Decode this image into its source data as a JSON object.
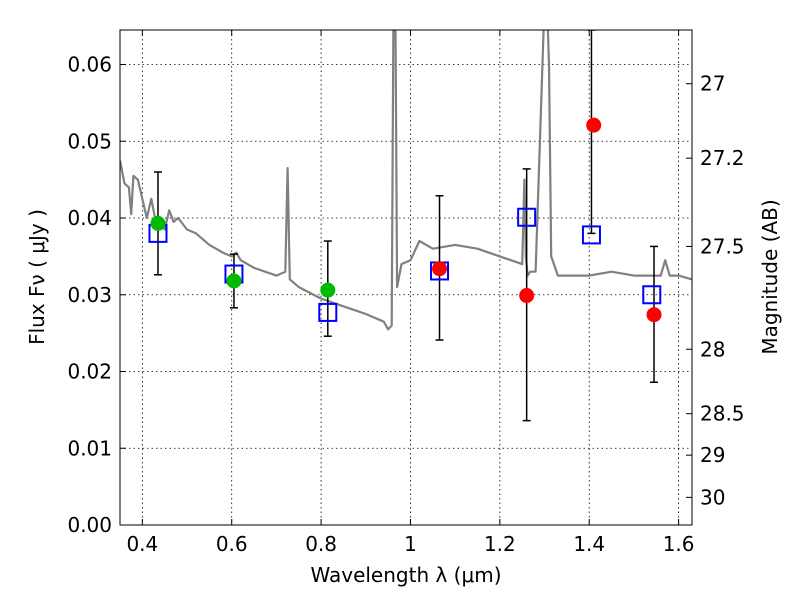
{
  "chart_data": {
    "type": "scatter",
    "xlabel": "Wavelength  λ (μm)",
    "ylabel_left": "Flux  Fν  ( μJy )",
    "ylabel_right": "Magnitude (AB)",
    "xlim": [
      0.35,
      1.63
    ],
    "ylim": [
      0.0,
      0.0645
    ],
    "x_ticks": [
      0.4,
      0.6,
      0.8,
      1.0,
      1.2,
      1.4,
      1.6
    ],
    "x_tick_labels": [
      "0.4",
      "0.6",
      "0.8",
      "1",
      "1.2",
      "1.4",
      "1.6"
    ],
    "y_ticks": [
      0.0,
      0.01,
      0.02,
      0.03,
      0.04,
      0.05,
      0.06
    ],
    "y_tick_labels": [
      "0.00",
      "0.01",
      "0.02",
      "0.03",
      "0.04",
      "0.05",
      "0.06"
    ],
    "right_ticks": [
      {
        "label": "27",
        "flux": 0.0575
      },
      {
        "label": "27.2",
        "flux": 0.0478
      },
      {
        "label": "27.5",
        "flux": 0.0363
      },
      {
        "label": "28",
        "flux": 0.0229
      },
      {
        "label": "28.5",
        "flux": 0.0145
      },
      {
        "label": "29",
        "flux": 0.0091
      },
      {
        "label": "30",
        "flux": 0.0036
      }
    ],
    "grid": true,
    "series": [
      {
        "style": "model-spectrum-line",
        "color": "#808080",
        "x": [
          0.35,
          0.36,
          0.37,
          0.375,
          0.38,
          0.39,
          0.4,
          0.41,
          0.42,
          0.43,
          0.44,
          0.45,
          0.46,
          0.47,
          0.48,
          0.5,
          0.52,
          0.55,
          0.58,
          0.6,
          0.61,
          0.62,
          0.65,
          0.7,
          0.72,
          0.725,
          0.73,
          0.75,
          0.8,
          0.85,
          0.9,
          0.94,
          0.95,
          0.958,
          0.962,
          0.966,
          0.97,
          0.975,
          0.98,
          1.0,
          1.02,
          1.05,
          1.1,
          1.15,
          1.2,
          1.25,
          1.255,
          1.258,
          1.262,
          1.268,
          1.28,
          1.3,
          1.305,
          1.31,
          1.315,
          1.33,
          1.35,
          1.4,
          1.45,
          1.5,
          1.56,
          1.57,
          1.58,
          1.6,
          1.63
        ],
        "y": [
          0.0475,
          0.0445,
          0.044,
          0.0405,
          0.0455,
          0.045,
          0.0425,
          0.04,
          0.0425,
          0.0395,
          0.0395,
          0.0385,
          0.041,
          0.0395,
          0.04,
          0.0385,
          0.038,
          0.0365,
          0.0355,
          0.035,
          0.0355,
          0.0345,
          0.0335,
          0.0325,
          0.033,
          0.0465,
          0.032,
          0.031,
          0.0295,
          0.0285,
          0.0275,
          0.0265,
          0.0255,
          0.026,
          0.068,
          0.069,
          0.031,
          0.0325,
          0.034,
          0.0345,
          0.037,
          0.036,
          0.0365,
          0.036,
          0.035,
          0.034,
          0.045,
          0.035,
          0.0325,
          0.033,
          0.033,
          0.068,
          0.069,
          0.06,
          0.035,
          0.0325,
          0.0325,
          0.0325,
          0.033,
          0.0325,
          0.0325,
          0.0345,
          0.0325,
          0.0325,
          0.032
        ]
      },
      {
        "style": "green-circles",
        "color": "#00bb00",
        "x": [
          0.435,
          0.605,
          0.815
        ],
        "y": [
          0.0393,
          0.0318,
          0.0306
        ]
      },
      {
        "style": "red-circles",
        "color": "#ff0000",
        "x": [
          1.065,
          1.26,
          1.41,
          1.545
        ],
        "y": [
          0.0334,
          0.0299,
          0.0521,
          0.0274
        ]
      },
      {
        "style": "blue-open-squares",
        "color": "#0000ff",
        "x": [
          0.435,
          0.605,
          0.815,
          1.065,
          1.26,
          1.405,
          1.54
        ],
        "y": [
          0.038,
          0.0327,
          0.0277,
          0.0331,
          0.0401,
          0.0378,
          0.03
        ]
      },
      {
        "style": "error-bars",
        "color": "#000000",
        "x": [
          0.435,
          0.605,
          0.815,
          1.065,
          1.26,
          1.405,
          1.545
        ],
        "y_low": [
          0.0326,
          0.0283,
          0.0246,
          0.0241,
          0.0136,
          0.038,
          0.0186
        ],
        "y_high": [
          0.046,
          0.0353,
          0.037,
          0.0429,
          0.0464,
          0.0645,
          0.0363
        ]
      }
    ]
  }
}
